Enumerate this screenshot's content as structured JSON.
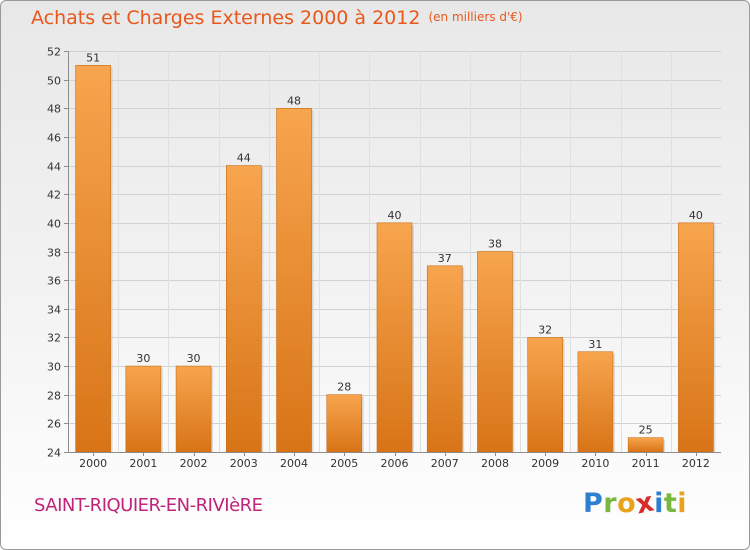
{
  "header": {
    "title": "Achats et Charges Externes 2000 à 2012",
    "subtitle": "(en milliers d'€)"
  },
  "footer": {
    "commune": "SAINT-RIQUIER-EN-RIVIèRE",
    "logo_letters": [
      "P",
      "r",
      "o",
      "x",
      "i",
      "t",
      "i"
    ],
    "logo_colors": [
      "#2f7fd0",
      "#79b83d",
      "#e9a21c",
      "#d92b2b",
      "#2f7fd0",
      "#79b83d",
      "#e9a21c"
    ]
  },
  "chart_data": {
    "type": "bar",
    "title": "Achats et Charges Externes 2000 à 2012",
    "subtitle": "(en milliers d'€)",
    "categories": [
      "2000",
      "2001",
      "2002",
      "2003",
      "2004",
      "2005",
      "2006",
      "2007",
      "2008",
      "2009",
      "2010",
      "2011",
      "2012"
    ],
    "values": [
      51,
      30,
      30,
      44,
      48,
      28,
      40,
      37,
      38,
      32,
      31,
      25,
      40
    ],
    "ylim": [
      24,
      52
    ],
    "yticks": [
      24,
      26,
      28,
      30,
      32,
      34,
      36,
      38,
      40,
      42,
      44,
      46,
      48,
      50,
      52
    ],
    "xlabel": "",
    "ylabel": "",
    "grid": true,
    "bar_color_light": "#f7a54e",
    "bar_color_dark": "#d87417"
  }
}
